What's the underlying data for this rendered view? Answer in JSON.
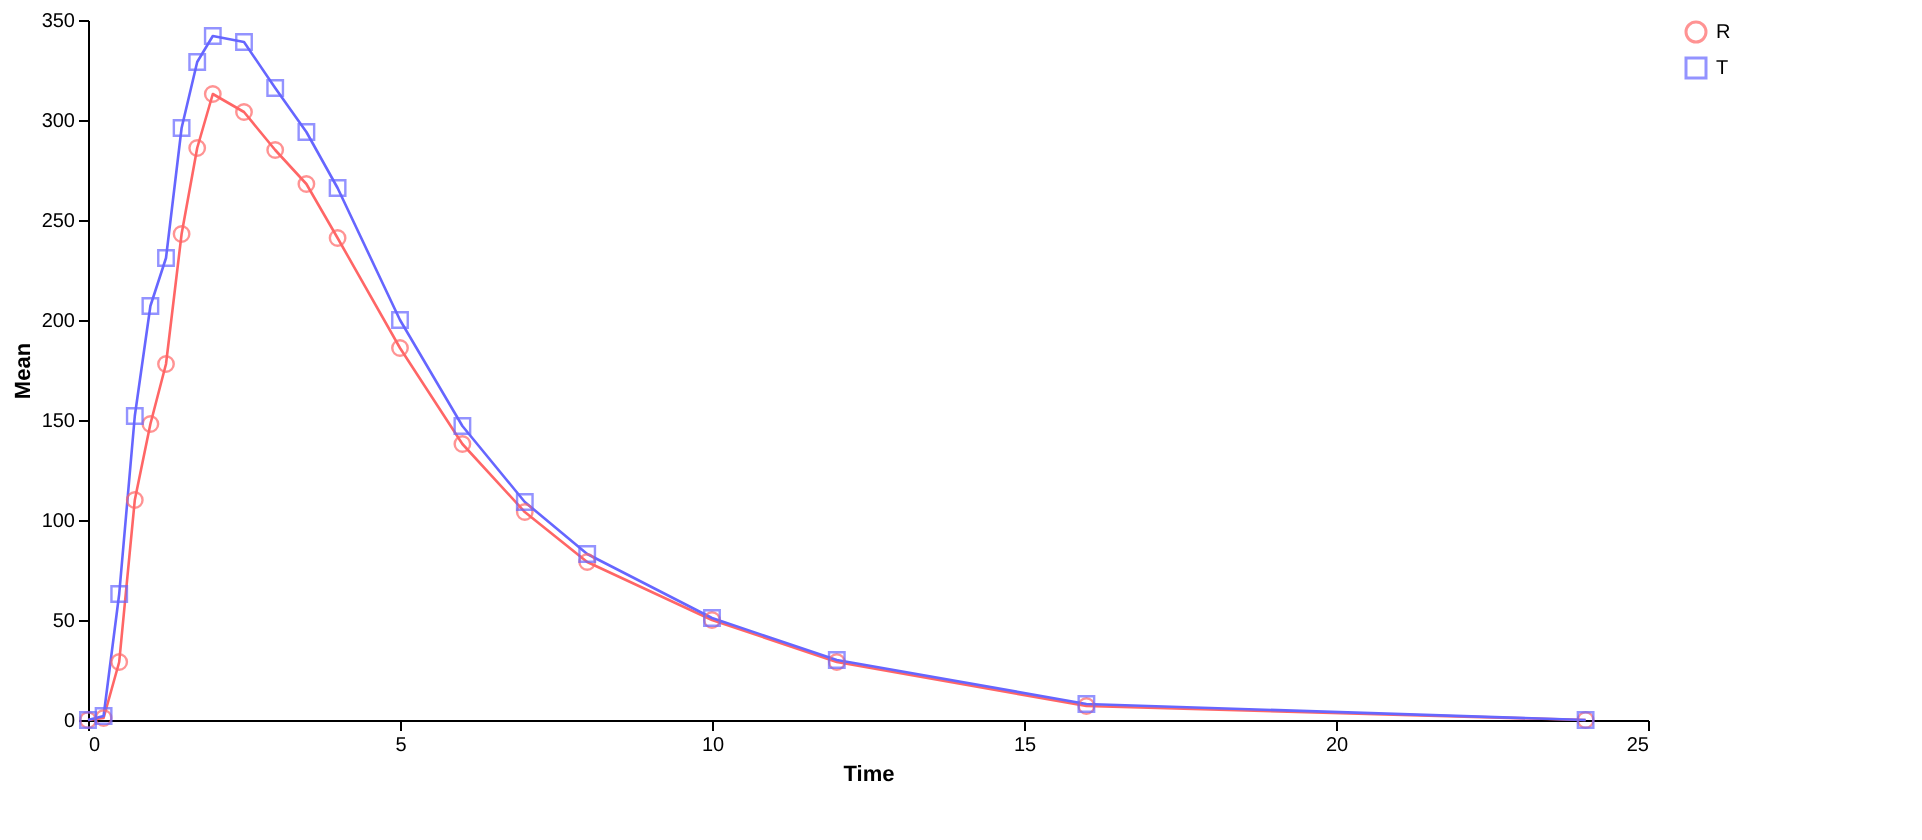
{
  "chart_data": {
    "type": "line",
    "xlabel": "Time",
    "ylabel": "Mean",
    "xlim": [
      0,
      25
    ],
    "xticks": [
      0,
      5,
      10,
      15,
      20,
      25
    ],
    "ylim": [
      0,
      350
    ],
    "yticks": [
      0,
      50,
      100,
      150,
      200,
      250,
      300,
      350
    ],
    "grid": false,
    "legend": "right",
    "x": [
      0,
      0.25,
      0.5,
      0.75,
      1,
      1.25,
      1.5,
      1.75,
      2,
      2.5,
      3,
      3.5,
      4,
      5,
      6,
      7,
      8,
      10,
      12,
      16,
      24
    ],
    "series": [
      {
        "name": "R",
        "color": "#ff6666",
        "marker": "circle",
        "values": [
          0,
          1,
          29,
          110,
          148,
          178,
          243,
          286,
          313,
          304,
          285,
          268,
          241,
          186,
          138,
          104,
          79,
          50,
          29,
          7,
          0
        ]
      },
      {
        "name": "T",
        "color": "#6666ff",
        "marker": "square",
        "values": [
          0,
          2,
          63,
          152,
          207,
          231,
          296,
          329,
          342,
          339,
          316,
          294,
          266,
          200,
          147,
          109,
          83,
          51,
          30,
          8,
          0
        ]
      }
    ]
  }
}
